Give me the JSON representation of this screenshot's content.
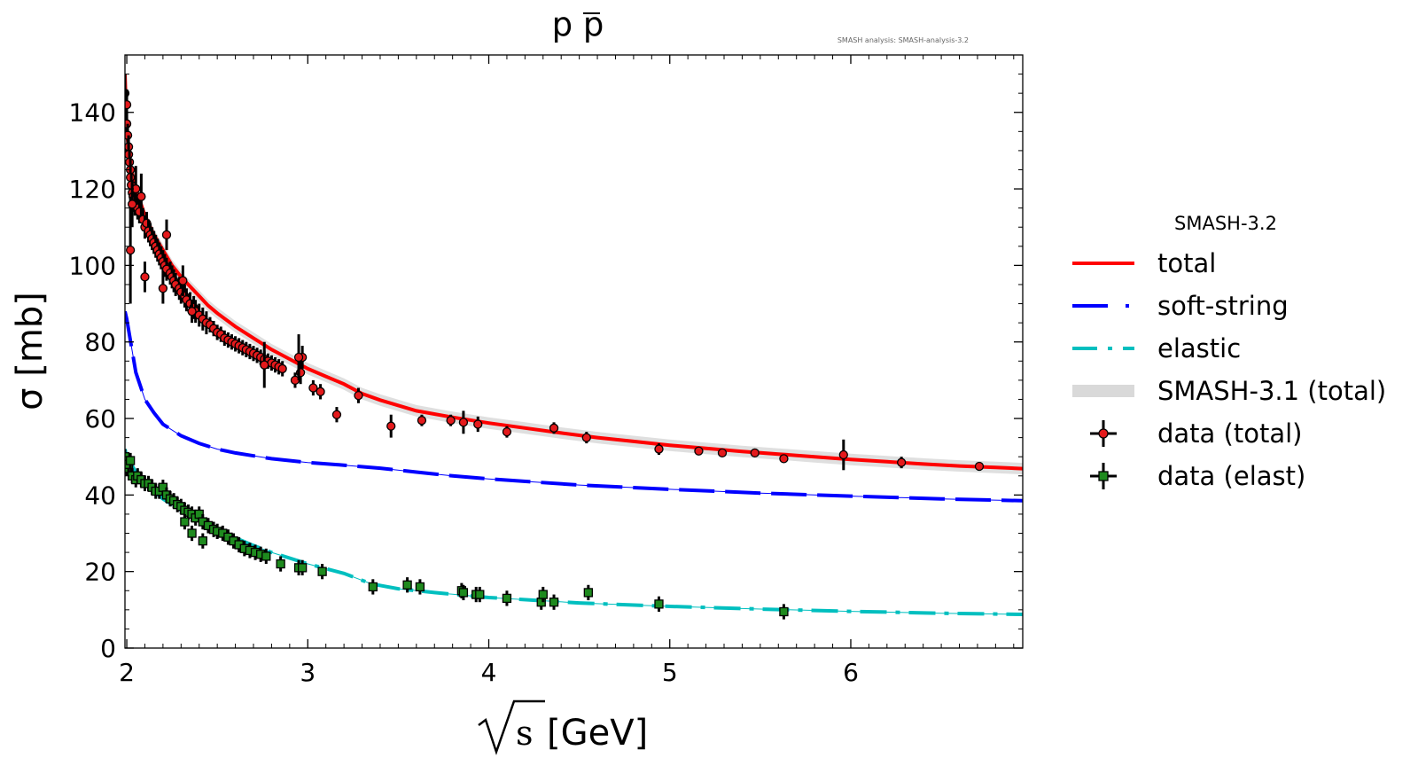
{
  "chart_data": {
    "type": "line",
    "title": "p p̄",
    "title_base": "p p",
    "title_bar": "p",
    "watermark": "SMASH analysis: SMASH-analysis-3.2",
    "xlabel": "[GeV]",
    "xlabel_symbol": "s",
    "ylabel": "σ [mb]",
    "xlim": [
      1.99,
      6.95
    ],
    "ylim": [
      0,
      155
    ],
    "xticks": [
      2,
      3,
      4,
      5,
      6
    ],
    "yticks": [
      0,
      20,
      40,
      60,
      80,
      100,
      120,
      140
    ],
    "legend": {
      "title": "SMASH-3.2",
      "placement": "right outside",
      "entries": [
        {
          "label": "total",
          "color": "#ff0000",
          "style": "solid"
        },
        {
          "label": "soft-string",
          "color": "#0000ff",
          "style": "dashed"
        },
        {
          "label": "elastic",
          "color": "#00bfbf",
          "style": "dashdot"
        },
        {
          "label": "SMASH-3.1 (total)",
          "color": "#d9d9d9",
          "style": "band"
        },
        {
          "label": "data (total)",
          "color": "#e41a1c",
          "style": "errorbar-circle"
        },
        {
          "label": "data (elast)",
          "color": "#2ca02c",
          "style": "errorbar-square"
        }
      ]
    },
    "series": [
      {
        "name": "total",
        "color": "#ff0000",
        "x": [
          1.99,
          2.0,
          2.02,
          2.05,
          2.1,
          2.15,
          2.2,
          2.25,
          2.3,
          2.35,
          2.4,
          2.45,
          2.5,
          2.6,
          2.7,
          2.8,
          2.9,
          3.0,
          3.1,
          3.2,
          3.3,
          3.4,
          3.6,
          3.8,
          4.0,
          4.2,
          4.4,
          4.6,
          4.8,
          5.0,
          5.2,
          5.4,
          5.6,
          5.8,
          6.0,
          6.2,
          6.4,
          6.6,
          6.8,
          6.95
        ],
        "y": [
          150,
          135,
          126,
          120,
          113,
          108,
          104,
          100,
          97,
          94.5,
          92,
          89.5,
          87.5,
          84,
          81,
          78,
          75.5,
          73,
          71,
          69,
          66.5,
          64.8,
          62,
          60.3,
          58.8,
          57.5,
          56.2,
          55,
          54,
          53,
          52.2,
          51.4,
          50.7,
          50,
          49.3,
          48.7,
          48.1,
          47.6,
          47.2,
          46.9
        ]
      },
      {
        "name": "soft-string",
        "color": "#0000ff",
        "x": [
          1.99,
          2.0,
          2.05,
          2.1,
          2.15,
          2.2,
          2.3,
          2.4,
          2.5,
          2.6,
          2.8,
          3.0,
          3.2,
          3.4,
          3.6,
          3.8,
          4.0,
          4.5,
          5.0,
          5.5,
          6.0,
          6.5,
          6.95
        ],
        "y": [
          88,
          86,
          72,
          65,
          61.5,
          58.5,
          55.5,
          53.5,
          52,
          51,
          49.5,
          48.5,
          47.8,
          47,
          46,
          45,
          44.2,
          42.6,
          41.5,
          40.5,
          39.7,
          39,
          38.5
        ]
      },
      {
        "name": "elastic",
        "color": "#00bfbf",
        "x": [
          1.99,
          2.0,
          2.05,
          2.1,
          2.2,
          2.3,
          2.4,
          2.5,
          2.6,
          2.7,
          2.8,
          3.0,
          3.2,
          3.35,
          3.5,
          3.7,
          4.0,
          4.5,
          5.0,
          5.5,
          6.0,
          6.5,
          6.95
        ],
        "y": [
          52,
          50,
          46,
          43,
          39,
          36,
          33.5,
          31,
          28.8,
          26.8,
          25,
          22,
          19.5,
          16.8,
          15.5,
          14.5,
          13.2,
          11.8,
          10.9,
          10.2,
          9.6,
          9.1,
          8.8
        ]
      },
      {
        "name": "SMASH-3.1 (total)",
        "color": "#d9d9d9",
        "band_halfwidth": 1.5,
        "x": [
          1.99,
          2.0,
          2.02,
          2.05,
          2.1,
          2.15,
          2.2,
          2.25,
          2.3,
          2.35,
          2.4,
          2.45,
          2.5,
          2.6,
          2.7,
          2.8,
          2.9,
          3.0,
          3.1,
          3.2,
          3.3,
          3.4,
          3.6,
          3.8,
          4.0,
          4.2,
          4.4,
          4.6,
          4.8,
          5.0,
          5.2,
          5.4,
          5.6,
          5.8,
          6.0,
          6.2,
          6.4,
          6.6,
          6.8,
          6.95
        ],
        "y": [
          150,
          135,
          126,
          120,
          113,
          108,
          104,
          100,
          97,
          94.5,
          92,
          89.5,
          87.5,
          84,
          81,
          78,
          75.5,
          73,
          71,
          69,
          66.5,
          64.8,
          62,
          60.3,
          58.8,
          57.5,
          56.2,
          55,
          54,
          53,
          52.2,
          51.4,
          50.7,
          50,
          49.3,
          48.7,
          48.1,
          47.6,
          47.2,
          46.9
        ]
      }
    ],
    "data_total": {
      "x": [
        1.99,
        2.0,
        2.0,
        2.005,
        2.01,
        2.01,
        2.015,
        2.02,
        2.02,
        2.025,
        2.03,
        2.035,
        2.04,
        2.045,
        2.05,
        2.06,
        2.07,
        2.08,
        2.09,
        2.1,
        2.11,
        2.12,
        2.13,
        2.14,
        2.15,
        2.16,
        2.17,
        2.18,
        2.19,
        2.2,
        2.21,
        2.22,
        2.24,
        2.25,
        2.26,
        2.27,
        2.29,
        2.3,
        2.32,
        2.33,
        2.35,
        2.37,
        2.38,
        2.4,
        2.42,
        2.44,
        2.46,
        2.48,
        2.5,
        2.52,
        2.54,
        2.56,
        2.58,
        2.6,
        2.62,
        2.64,
        2.66,
        2.68,
        2.7,
        2.72,
        2.74,
        2.76,
        2.78,
        2.8,
        2.82,
        2.84,
        2.86,
        2.93,
        2.96,
        2.97,
        3.03,
        3.07,
        3.16,
        3.28,
        3.46,
        3.63,
        3.79,
        3.86,
        3.94,
        4.1,
        4.36,
        4.54,
        4.94,
        5.16,
        5.29,
        5.47,
        5.63,
        5.96,
        6.28,
        6.71,
        2.02,
        2.03,
        2.1,
        2.2,
        2.22,
        2.31,
        2.36,
        2.76,
        2.95
      ],
      "y": [
        145,
        142,
        137,
        134,
        131,
        129,
        127,
        125,
        123,
        121,
        119,
        118,
        117,
        116,
        120,
        115,
        114,
        118,
        112,
        110,
        111,
        109,
        108,
        107,
        106,
        105,
        104,
        103,
        102,
        101,
        100,
        99,
        98,
        97,
        96,
        95,
        94,
        93,
        92,
        91,
        90,
        89,
        88,
        87,
        86,
        85,
        84.5,
        83.5,
        82.5,
        82,
        81,
        80.5,
        80,
        79.5,
        79,
        78.5,
        78,
        77.5,
        77,
        76.5,
        76,
        75.5,
        75,
        74.5,
        74,
        73.5,
        73,
        70,
        72,
        76,
        68,
        67,
        61,
        66,
        58,
        59.5,
        59.5,
        59,
        58.5,
        56.5,
        57.5,
        55,
        52,
        51.5,
        51,
        51,
        49.5,
        50.5,
        48.5,
        47.5,
        104,
        116,
        97,
        94,
        108,
        96,
        88,
        74,
        76
      ],
      "err": [
        5,
        4,
        3,
        3,
        3,
        3,
        3,
        3,
        3,
        3,
        3,
        3,
        3,
        3,
        6,
        3,
        3,
        6,
        3,
        3,
        3,
        3,
        3,
        3,
        3,
        3,
        3,
        3,
        3,
        3,
        3,
        3,
        3,
        3,
        3,
        3,
        3,
        3,
        3,
        3,
        3,
        3,
        3,
        3,
        3,
        3,
        2,
        2,
        2,
        2,
        2,
        2,
        2,
        2,
        2,
        2,
        2,
        2,
        2,
        2,
        2,
        2,
        2,
        2,
        2,
        2,
        2,
        2,
        3,
        3,
        2,
        2,
        2,
        2,
        3,
        1.5,
        1.5,
        3,
        2,
        1.5,
        1.5,
        1.5,
        1.5,
        1,
        1,
        1,
        1,
        4,
        1.5,
        1,
        14,
        6,
        4,
        4,
        4,
        4,
        3,
        6,
        6
      ]
    },
    "data_elast": {
      "x": [
        1.99,
        2.0,
        2.01,
        2.02,
        2.03,
        2.05,
        2.06,
        2.08,
        2.1,
        2.12,
        2.14,
        2.16,
        2.18,
        2.2,
        2.22,
        2.24,
        2.26,
        2.28,
        2.3,
        2.32,
        2.34,
        2.36,
        2.38,
        2.4,
        2.42,
        2.45,
        2.48,
        2.5,
        2.53,
        2.56,
        2.59,
        2.62,
        2.65,
        2.68,
        2.71,
        2.74,
        2.77,
        2.85,
        2.95,
        2.97,
        3.08,
        3.36,
        3.55,
        3.62,
        3.85,
        3.86,
        3.93,
        3.95,
        4.1,
        4.29,
        4.3,
        4.36,
        4.55,
        4.94,
        5.63,
        2.32,
        2.36,
        2.42
      ],
      "y": [
        50,
        47,
        48,
        49,
        45,
        44,
        45,
        44,
        43,
        43,
        42,
        41,
        41,
        42,
        40,
        39,
        38.5,
        37.5,
        37,
        36,
        35.5,
        35,
        34,
        35,
        33,
        32,
        31,
        30.5,
        30,
        29,
        28,
        27,
        26,
        25.5,
        25,
        24.5,
        24,
        22,
        21,
        21,
        20,
        16,
        16.5,
        16,
        15,
        14.5,
        14,
        14,
        13,
        12,
        14,
        12,
        14.5,
        11.5,
        9.5,
        33,
        30,
        28
      ]
    }
  }
}
